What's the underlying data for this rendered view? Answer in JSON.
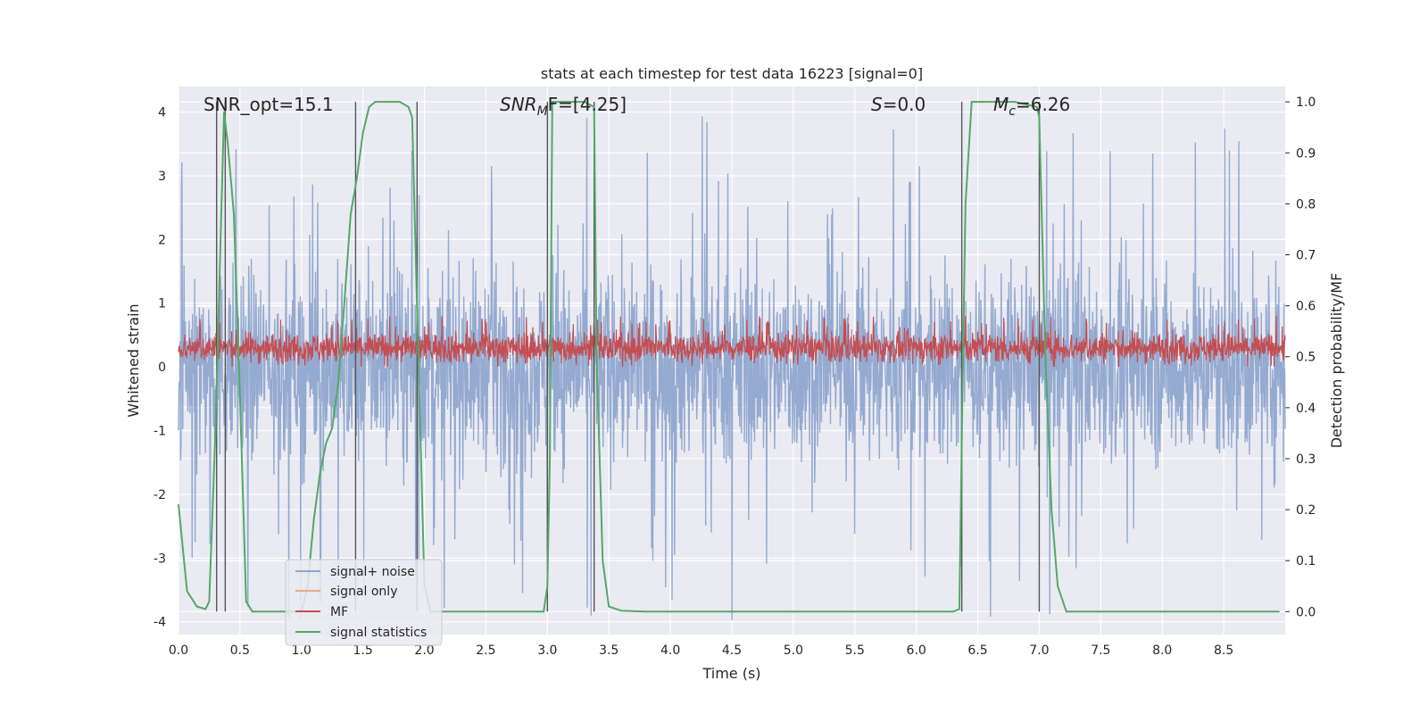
{
  "chart_data": {
    "type": "line",
    "title": "stats at each timestep for test data 16223 [signal=0]",
    "xlabel": "Time (s)",
    "ylabel": "Whitened strain",
    "ylabel_right": "Detection probability/MF",
    "xlim": [
      0,
      9
    ],
    "ylim": [
      -4.2,
      4.4
    ],
    "ylim_right": [
      -0.045,
      1.03
    ],
    "x_ticks": [
      "0.0",
      "0.5",
      "1.0",
      "1.5",
      "2.0",
      "2.5",
      "3.0",
      "3.5",
      "4.0",
      "4.5",
      "5.0",
      "5.5",
      "6.0",
      "6.5",
      "7.0",
      "7.5",
      "8.0",
      "8.5"
    ],
    "y_ticks": [
      "-4",
      "-3",
      "-2",
      "-1",
      "0",
      "1",
      "2",
      "3",
      "4"
    ],
    "y_ticks_right": [
      "0.0",
      "0.1",
      "0.2",
      "0.3",
      "0.4",
      "0.5",
      "0.6",
      "0.7",
      "0.8",
      "0.9",
      "1.0"
    ],
    "annotations": [
      {
        "text": "SNR_opt=15.1",
        "x": 0.2
      },
      {
        "base": "SNR",
        "sub": "M",
        "tail": "F=[4.25]",
        "x": 2.6
      },
      {
        "base": "S",
        "tail": "=0.0",
        "x": 5.6
      },
      {
        "base": "M",
        "sub": "c",
        "tail": "=6.26",
        "x": 6.6
      }
    ],
    "vlines": [
      0.31,
      0.38,
      1.44,
      1.94,
      3.0,
      3.38,
      6.37,
      7.0
    ],
    "series": [
      {
        "name": "signal+ noise",
        "color": "#8fa6cd",
        "description": "noise band, approx within -2.5 to 2.5 with spikes to ±4"
      },
      {
        "name": "signal only",
        "color": "#e8a98a"
      },
      {
        "name": "MF",
        "color": "#c44e52",
        "description": "band approx 0.0 to 0.75"
      },
      {
        "name": "signal statistics",
        "color": "#55a868",
        "axis": "right",
        "x": [
          0.0,
          0.07,
          0.15,
          0.22,
          0.25,
          0.3,
          0.37,
          0.4,
          0.45,
          0.49,
          0.55,
          0.6,
          0.8,
          1.0,
          1.05,
          1.1,
          1.15,
          1.2,
          1.25,
          1.3,
          1.35,
          1.4,
          1.45,
          1.5,
          1.55,
          1.6,
          1.7,
          1.8,
          1.87,
          1.9,
          1.95,
          2.0,
          2.05,
          2.5,
          2.97,
          3.0,
          3.02,
          3.04,
          3.1,
          3.3,
          3.38,
          3.4,
          3.45,
          3.5,
          3.6,
          3.8,
          6.3,
          6.35,
          6.38,
          6.4,
          6.45,
          6.8,
          6.98,
          7.0,
          7.05,
          7.1,
          7.15,
          7.22,
          8.95
        ],
        "values": [
          0.21,
          0.04,
          0.01,
          0.005,
          0.02,
          0.35,
          0.98,
          0.92,
          0.78,
          0.5,
          0.02,
          0.0,
          0.0,
          0.0,
          0.05,
          0.18,
          0.27,
          0.33,
          0.36,
          0.45,
          0.61,
          0.78,
          0.85,
          0.94,
          0.99,
          1.0,
          1.0,
          1.0,
          0.99,
          0.97,
          0.5,
          0.05,
          0.0,
          0.0,
          0.0,
          0.05,
          0.3,
          1.0,
          1.0,
          1.0,
          0.99,
          0.5,
          0.1,
          0.01,
          0.002,
          0.0,
          0.0,
          0.005,
          0.5,
          0.8,
          1.0,
          1.0,
          0.99,
          0.97,
          0.5,
          0.2,
          0.05,
          0.0,
          0.0
        ]
      }
    ],
    "legend_position": "lower-left",
    "grid": true
  }
}
